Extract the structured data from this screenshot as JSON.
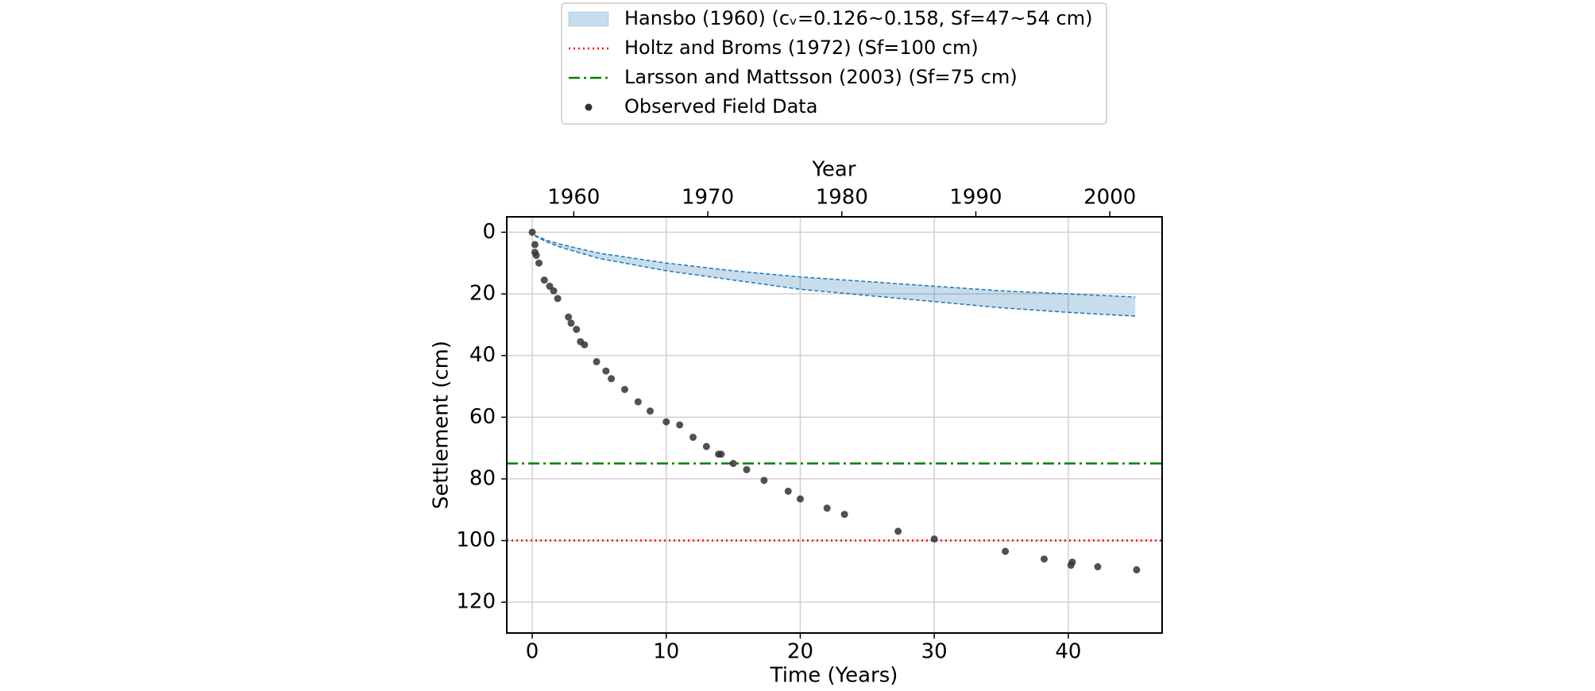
{
  "chart_data": {
    "type": "scatter",
    "x_label": "Time (Years)",
    "y_label": "Settlement (cm)",
    "x2_label": "Year",
    "xlim": [
      -1.9,
      47
    ],
    "xticks": [
      0,
      10,
      20,
      30,
      40
    ],
    "x2lim": [
      1955,
      2003.9
    ],
    "x2ticks": [
      1960,
      1970,
      1980,
      1990,
      2000
    ],
    "ylim": [
      -5,
      130
    ],
    "yticks": [
      0,
      20,
      40,
      60,
      80,
      100,
      120
    ],
    "y_inverted": true,
    "grid": true,
    "legend": "top",
    "series": [
      {
        "name": "Hansbo (1960) (cᵥ=0.126~0.158, Sf=47~54 cm)",
        "kind": "band",
        "color": "#1f77b4",
        "x": [
          0.2,
          1,
          2,
          5,
          10,
          15,
          20,
          25,
          30,
          35,
          40,
          45
        ],
        "lower": [
          1,
          2.5,
          3.8,
          6.8,
          10,
          12.5,
          14.5,
          16,
          17.5,
          19,
          20,
          21
        ],
        "upper": [
          1.2,
          3,
          4.7,
          8.5,
          12.5,
          15.5,
          18.5,
          20.5,
          22.5,
          24.5,
          26,
          27.2
        ]
      },
      {
        "name": "Holtz and Broms (1972) (Sf=100 cm)",
        "kind": "hline",
        "color": "#ff0000",
        "value": 100
      },
      {
        "name": "Larsson and Mattsson (2003) (Sf=75 cm)",
        "kind": "hline",
        "color": "#008000",
        "value": 75
      },
      {
        "name": "Observed Field Data",
        "kind": "points",
        "color": "#333333",
        "x": [
          0,
          0.2,
          0.2,
          0.3,
          0.5,
          0.9,
          1.3,
          1.6,
          1.9,
          2.7,
          2.9,
          3.3,
          3.6,
          3.9,
          4.8,
          5.5,
          5.9,
          6.9,
          7.9,
          8.8,
          10,
          11,
          12,
          13,
          13.9,
          14.1,
          15,
          16,
          17.3,
          19.1,
          20,
          22,
          23.3,
          27.3,
          30,
          35.3,
          38.2,
          40.2,
          40.3,
          42.2,
          45.1
        ],
        "values": [
          0,
          4,
          6.5,
          7.5,
          10,
          15.5,
          17.5,
          19,
          21.5,
          27.5,
          29.5,
          31.5,
          35.5,
          36.5,
          42,
          45,
          47.5,
          51,
          55,
          58,
          61.5,
          62.5,
          66.5,
          69.5,
          72,
          72,
          75,
          77,
          80.5,
          84,
          86.5,
          89.5,
          91.5,
          97,
          99.5,
          103.5,
          106,
          108,
          107,
          108.5,
          109.5
        ]
      }
    ]
  }
}
